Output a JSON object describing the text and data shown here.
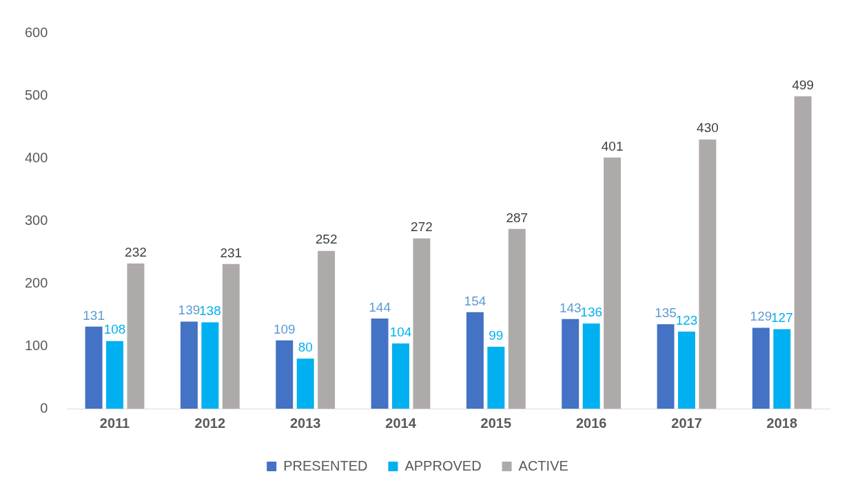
{
  "chart_data": {
    "type": "bar",
    "categories": [
      "2011",
      "2012",
      "2013",
      "2014",
      "2015",
      "2016",
      "2017",
      "2018"
    ],
    "series": [
      {
        "name": "PRESENTED",
        "color": "#4472c4",
        "values": [
          131,
          139,
          109,
          144,
          154,
          143,
          135,
          129
        ]
      },
      {
        "name": "APPROVED",
        "color": "#00b0f0",
        "values": [
          108,
          138,
          80,
          104,
          99,
          136,
          123,
          127
        ]
      },
      {
        "name": "ACTIVE",
        "color": "#aeaaaa",
        "values": [
          232,
          231,
          252,
          272,
          287,
          401,
          430,
          499
        ]
      }
    ],
    "ylim": [
      0,
      600
    ],
    "yticks": [
      0,
      100,
      200,
      300,
      400,
      500,
      600
    ],
    "grid": false,
    "legend": "bottom",
    "data_labels": true
  }
}
